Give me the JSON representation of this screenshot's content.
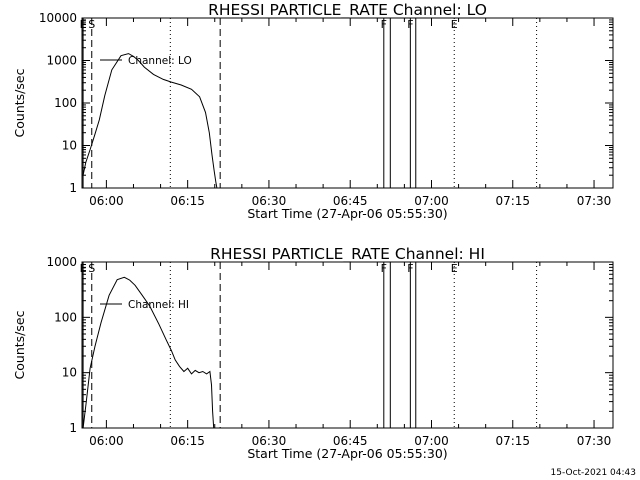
{
  "chart_data": [
    {
      "type": "line",
      "title": "RHESSI PARTICLE_RATE Channel: LO",
      "xlabel": "Start Time (27-Apr-06 05:55:30)",
      "ylabel": "Counts/sec",
      "x_unit": "minutes since 05:55:30",
      "xlim": [
        0,
        98
      ],
      "ylim": [
        1,
        10000
      ],
      "yscale": "log",
      "grid": false,
      "x_ticks": [
        {
          "at": 4.5,
          "label": "06:00"
        },
        {
          "at": 19.5,
          "label": "06:15"
        },
        {
          "at": 34.5,
          "label": "06:30"
        },
        {
          "at": 49.5,
          "label": "06:45"
        },
        {
          "at": 64.5,
          "label": "07:00"
        },
        {
          "at": 79.5,
          "label": "07:15"
        },
        {
          "at": 94.5,
          "label": "07:30"
        }
      ],
      "y_ticks": [
        {
          "value": 1,
          "label": "1"
        },
        {
          "value": 10,
          "label": "10"
        },
        {
          "value": 100,
          "label": "100"
        },
        {
          "value": 1000,
          "label": "1000"
        },
        {
          "value": 10000,
          "label": "10000"
        }
      ],
      "legend": {
        "label": "Channel: LO",
        "position": "top-left"
      },
      "markers": [
        {
          "x": 0.2,
          "label": "E",
          "style": "solid"
        },
        {
          "x": 1.8,
          "label": "S",
          "style": "dashed"
        },
        {
          "x": 16.3,
          "label": "",
          "style": "dotted"
        },
        {
          "x": 25.5,
          "label": "",
          "style": "dashed"
        },
        {
          "x": 55.7,
          "label": "F",
          "style": "solid"
        },
        {
          "x": 56.9,
          "label": "",
          "style": "solid"
        },
        {
          "x": 60.6,
          "label": "F",
          "style": "solid"
        },
        {
          "x": 61.6,
          "label": "",
          "style": "solid"
        },
        {
          "x": 68.7,
          "label": "E",
          "style": "dotted"
        },
        {
          "x": 83.9,
          "label": "",
          "style": "dotted"
        }
      ],
      "series": [
        {
          "name": "Channel: LO",
          "x": [
            0.2,
            0.7,
            1.5,
            2.3,
            3.2,
            4.2,
            5.5,
            7.2,
            8.6,
            9.5,
            10.4,
            11.5,
            13.2,
            15.0,
            16.5,
            18.3,
            20.2,
            21.7,
            22.8,
            23.5,
            24.0,
            24.4,
            24.7,
            24.9
          ],
          "y": [
            2.0,
            4.0,
            8.0,
            17,
            40,
            150,
            600,
            1300,
            1450,
            1250,
            1000,
            700,
            470,
            360,
            310,
            265,
            210,
            140,
            60,
            20,
            6,
            2.5,
            1.4,
            1.0
          ]
        }
      ]
    },
    {
      "type": "line",
      "title": "RHESSI PARTICLE_RATE Channel: HI",
      "xlabel": "Start Time (27-Apr-06 05:55:30)",
      "ylabel": "Counts/sec",
      "x_unit": "minutes since 05:55:30",
      "xlim": [
        0,
        98
      ],
      "ylim": [
        1,
        1000
      ],
      "yscale": "log",
      "grid": false,
      "x_ticks": [
        {
          "at": 4.5,
          "label": "06:00"
        },
        {
          "at": 19.5,
          "label": "06:15"
        },
        {
          "at": 34.5,
          "label": "06:30"
        },
        {
          "at": 49.5,
          "label": "06:45"
        },
        {
          "at": 64.5,
          "label": "07:00"
        },
        {
          "at": 79.5,
          "label": "07:15"
        },
        {
          "at": 94.5,
          "label": "07:30"
        }
      ],
      "y_ticks": [
        {
          "value": 1,
          "label": "1"
        },
        {
          "value": 10,
          "label": "10"
        },
        {
          "value": 100,
          "label": "100"
        },
        {
          "value": 1000,
          "label": "1000"
        }
      ],
      "legend": {
        "label": "Channel: HI",
        "position": "top-left"
      },
      "markers": [
        {
          "x": 0.2,
          "label": "E",
          "style": "solid"
        },
        {
          "x": 1.8,
          "label": "S",
          "style": "dashed"
        },
        {
          "x": 16.3,
          "label": "",
          "style": "dotted"
        },
        {
          "x": 25.5,
          "label": "",
          "style": "dashed"
        },
        {
          "x": 55.7,
          "label": "F",
          "style": "solid"
        },
        {
          "x": 56.9,
          "label": "",
          "style": "solid"
        },
        {
          "x": 60.6,
          "label": "F",
          "style": "solid"
        },
        {
          "x": 61.6,
          "label": "",
          "style": "solid"
        },
        {
          "x": 68.7,
          "label": "E",
          "style": "dotted"
        },
        {
          "x": 83.9,
          "label": "",
          "style": "dotted"
        }
      ],
      "series": [
        {
          "name": "Channel: HI",
          "x": [
            0.2,
            0.8,
            1.5,
            2.4,
            3.5,
            5.0,
            6.5,
            7.8,
            8.8,
            9.8,
            11.0,
            12.5,
            14.2,
            15.5,
            16.5,
            17.2,
            18.0,
            18.8,
            19.5,
            20.2,
            20.9,
            21.6,
            22.3,
            23.0,
            23.6,
            23.9,
            24.1,
            24.3
          ],
          "y": [
            1.0,
            3.0,
            12,
            30,
            80,
            250,
            480,
            530,
            470,
            380,
            260,
            160,
            75,
            40,
            25,
            17,
            13,
            10.5,
            12,
            9.5,
            11,
            10,
            10.5,
            9.5,
            10.5,
            6,
            2,
            1.0
          ]
        }
      ]
    }
  ],
  "footer": {
    "timestamp": "15-Oct-2021 04:43"
  }
}
